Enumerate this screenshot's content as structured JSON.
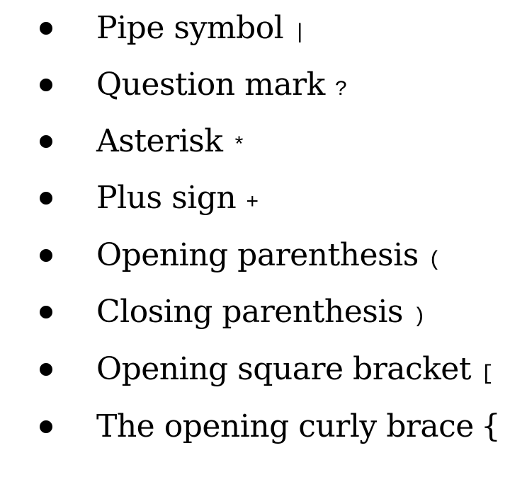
{
  "list": {
    "items": [
      {
        "label": "Pipe symbol",
        "symbol": "|"
      },
      {
        "label": "Question mark",
        "symbol": "?"
      },
      {
        "label": "Asterisk",
        "symbol": "*"
      },
      {
        "label": "Plus sign",
        "symbol": "+"
      },
      {
        "label": "Opening parenthesis",
        "symbol": "("
      },
      {
        "label": "Closing parenthesis",
        "symbol": ")"
      },
      {
        "label": "Opening square bracket",
        "symbol": "["
      },
      {
        "label": "The opening curly brace",
        "symbol": "{"
      }
    ]
  }
}
